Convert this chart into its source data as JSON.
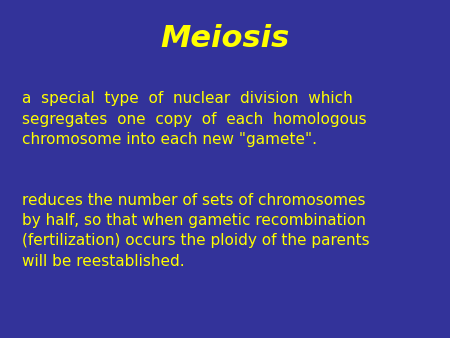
{
  "title": "Meiosis",
  "title_color": "#FFFF00",
  "title_fontsize": 22,
  "title_fontweight": "bold",
  "title_fontstyle": "italic",
  "background_color": "#33339A",
  "text_color": "#FFFF00",
  "text_fontsize": 11.0,
  "paragraph1": "a  special  type  of  nuclear  division  which\nsegregates  one  copy  of  each  homologous\nchromosome into each new \"gamete\".",
  "paragraph2": "reduces the number of sets of chromosomes\nby half, so that when gametic recombination\n(fertilization) occurs the ploidy of the parents\nwill be reestablished.",
  "fig_width": 4.5,
  "fig_height": 3.38,
  "dpi": 100
}
